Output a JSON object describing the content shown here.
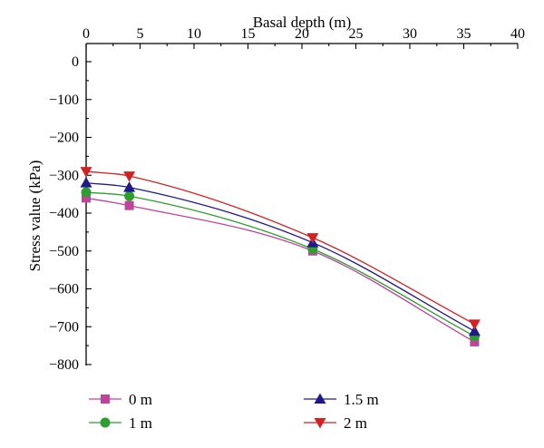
{
  "chart_data": {
    "type": "line",
    "title": "",
    "xlabel": "Basal depth (m)",
    "ylabel": "Stress value (kPa)",
    "xlim": [
      0,
      40
    ],
    "ylim": [
      -800,
      0
    ],
    "x_ticks": [
      0,
      5,
      10,
      15,
      20,
      25,
      30,
      35,
      40
    ],
    "y_ticks": [
      0,
      -100,
      -200,
      -300,
      -400,
      -500,
      -600,
      -700,
      -800
    ],
    "x_tick_labels": [
      "0",
      "5",
      "10",
      "15",
      "20",
      "25",
      "30",
      "35",
      "40"
    ],
    "y_tick_labels": [
      "0",
      "−100",
      "−200",
      "−300",
      "−400",
      "−500",
      "−600",
      "−700",
      "−800"
    ],
    "x_axis_position": "top",
    "grid": false,
    "legend_position": "bottom",
    "x": [
      0,
      4,
      21,
      36
    ],
    "series": [
      {
        "name": "0 m",
        "values": [
          -360,
          -380,
          -500,
          -740
        ],
        "color": "#c0449c",
        "marker": "square"
      },
      {
        "name": "1 m",
        "values": [
          -345,
          -355,
          -495,
          -725
        ],
        "color": "#2e9e2e",
        "marker": "circle"
      },
      {
        "name": "1.5 m",
        "values": [
          -320,
          -332,
          -478,
          -712
        ],
        "color": "#1e1a8c",
        "marker": "triangle-up"
      },
      {
        "name": "2 m",
        "values": [
          -290,
          -302,
          -465,
          -693
        ],
        "color": "#d42020",
        "marker": "triangle-down"
      }
    ]
  }
}
